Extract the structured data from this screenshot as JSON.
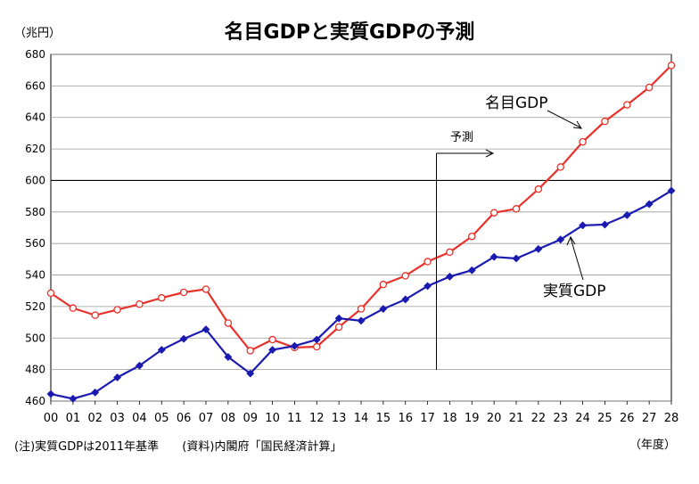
{
  "chart_data": {
    "type": "line",
    "title": "名目GDPと実質GDPの予測",
    "y_unit_label": "（兆円）",
    "x_unit_label": "（年度）",
    "ylim": [
      460,
      680
    ],
    "yticks": [
      460,
      480,
      500,
      520,
      540,
      560,
      580,
      600,
      620,
      640,
      660,
      680
    ],
    "categories": [
      "00",
      "01",
      "02",
      "03",
      "04",
      "05",
      "06",
      "07",
      "08",
      "09",
      "10",
      "11",
      "12",
      "13",
      "14",
      "15",
      "16",
      "17",
      "18",
      "19",
      "20",
      "21",
      "22",
      "23",
      "24",
      "25",
      "26",
      "27",
      "28"
    ],
    "grid": true,
    "series": [
      {
        "name": "名目GDP",
        "color": "#e8312a",
        "marker": "open-circle",
        "values": [
          528.5,
          519,
          514.5,
          518,
          521.5,
          525.5,
          529,
          531,
          509.5,
          492,
          499,
          494,
          494.5,
          507,
          518.5,
          534,
          539.5,
          548.5,
          554.5,
          564.5,
          579.5,
          582,
          594.5,
          608.5,
          624.5,
          637.5,
          648,
          659,
          673
        ]
      },
      {
        "name": "実質GDP",
        "color": "#1a1ab0",
        "marker": "diamond",
        "values": [
          464.5,
          461.5,
          465.5,
          475,
          482.5,
          492.5,
          499.5,
          505.5,
          488,
          477.5,
          492.5,
          495,
          499,
          512.5,
          511,
          518.5,
          524.5,
          533,
          539,
          543,
          551.5,
          550.5,
          556.5,
          562.5,
          571.5,
          572,
          578,
          585,
          593.5
        ]
      }
    ],
    "annotations": {
      "forecast_label": "予測",
      "forecast_start_index": 17.4,
      "highlight_line_value": 600
    },
    "notes": [
      "(注)実質GDPは2011年基準",
      "(資料)内閣府「国民経済計算」"
    ]
  }
}
